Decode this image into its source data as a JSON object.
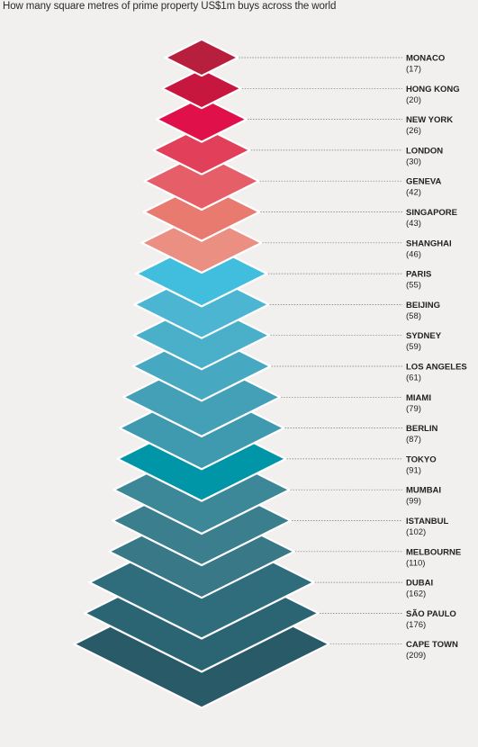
{
  "chart_data": {
    "type": "bar",
    "title": "How many square metres of prime property US$1m buys across the world",
    "categories": [
      "MONACO",
      "HONG KONG",
      "NEW YORK",
      "LONDON",
      "GENEVA",
      "SINGAPORE",
      "SHANGHAI",
      "PARIS",
      "BEIJING",
      "SYDNEY",
      "LOS ANGELES",
      "MIAMI",
      "BERLIN",
      "TOKYO",
      "MUMBAI",
      "ISTANBUL",
      "MELBOURNE",
      "DUBAI",
      "SÃO PAULO",
      "CAPE TOWN"
    ],
    "values": [
      17,
      20,
      26,
      30,
      42,
      43,
      46,
      55,
      58,
      59,
      61,
      79,
      87,
      91,
      99,
      102,
      110,
      162,
      176,
      209
    ],
    "value_labels": [
      "(17)",
      "(20)",
      "(26)",
      "(30)",
      "(42)",
      "(43)",
      "(46)",
      "(55)",
      "(58)",
      "(59)",
      "(61)",
      "(79)",
      "(87)",
      "(91)",
      "(99)",
      "(102)",
      "(110)",
      "(162)",
      "(176)",
      "(209)"
    ],
    "colors": [
      "#b81f3d",
      "#c8173f",
      "#e0104a",
      "#e2405a",
      "#e65f68",
      "#e87a70",
      "#eb8f82",
      "#41bedd",
      "#4cb6d2",
      "#4ab0c9",
      "#47a8c1",
      "#44a0b7",
      "#3f9aaf",
      "#0096a8",
      "#3d8898",
      "#3b7f8f",
      "#387887",
      "#2f6d7d",
      "#2b6473",
      "#285a68"
    ]
  }
}
